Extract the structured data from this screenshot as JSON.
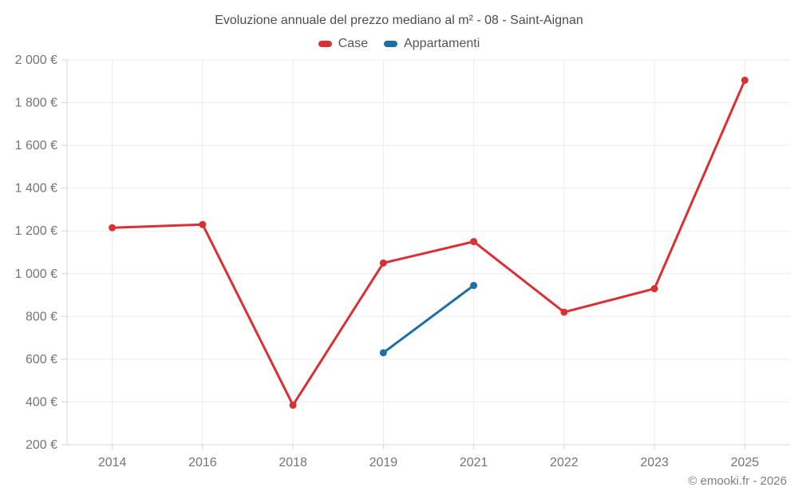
{
  "page": {
    "footer": "© emooki.fr - 2026"
  },
  "chart_data": {
    "type": "line",
    "title": "Evoluzione annuale del prezzo mediano al m² - 08 - Saint-Aignan",
    "categories": [
      "2014",
      "2016",
      "2018",
      "2019",
      "2021",
      "2022",
      "2023",
      "2025"
    ],
    "series": [
      {
        "name": "Case",
        "color": "#d93034",
        "values": [
          1215,
          1230,
          385,
          1050,
          1150,
          820,
          930,
          1905
        ]
      },
      {
        "name": "Appartamenti",
        "color": "#1d6fa5",
        "values": [
          null,
          null,
          null,
          630,
          945,
          null,
          null,
          null
        ]
      }
    ],
    "ylim": [
      200,
      2000
    ],
    "y_ticks": [
      200,
      400,
      600,
      800,
      1000,
      1200,
      1400,
      1600,
      1800,
      2000
    ],
    "y_unit": "€",
    "grid": true,
    "legend_position": "top",
    "colors": {
      "grid_line": "#ececec",
      "axis_line": "#d9d9d9",
      "tick_mark": "#d4d4d4",
      "axis_label": "#757575",
      "title_text": "#4d4d4d"
    }
  }
}
